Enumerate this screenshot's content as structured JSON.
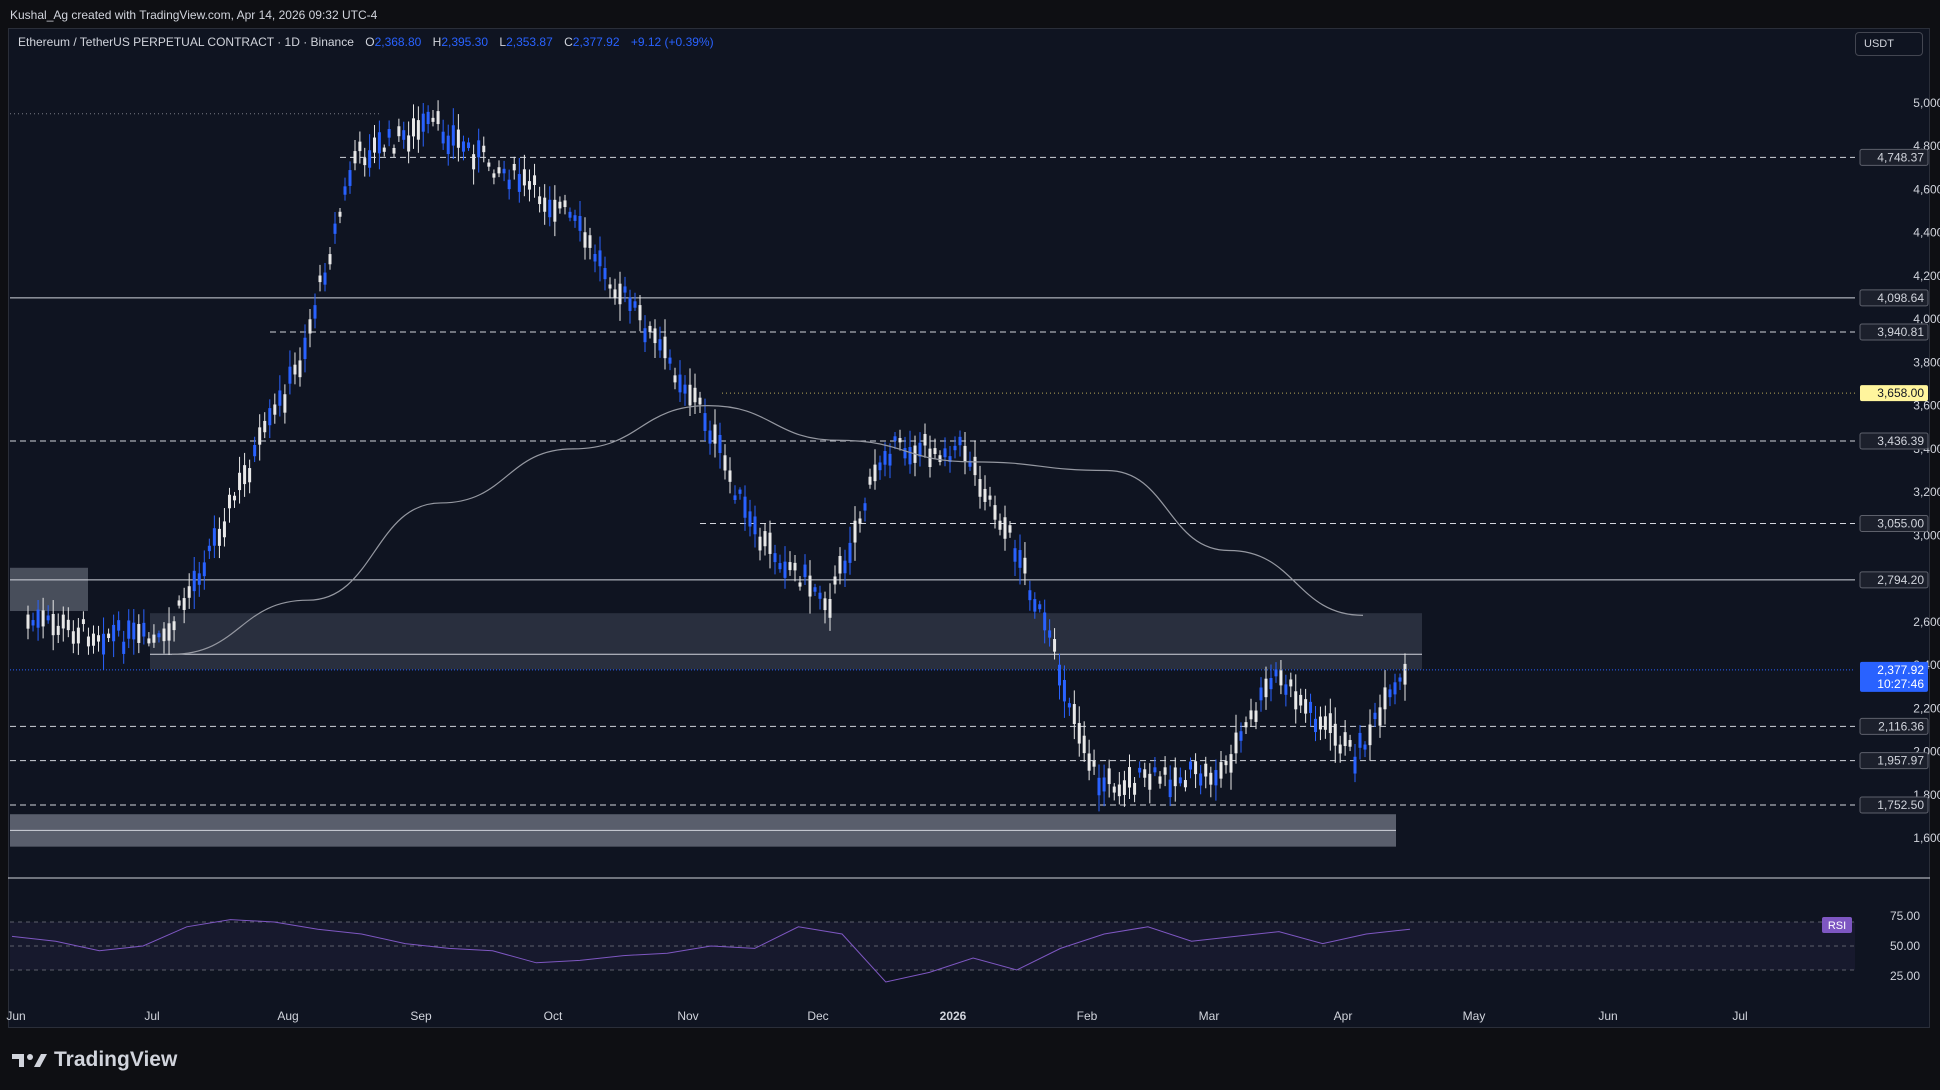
{
  "caption": "Kushal_Ag created with TradingView.com, Apr 14, 2026 09:32 UTC-4",
  "legend": {
    "symbol": "Ethereum / TetherUS PERPETUAL CONTRACT · 1D · Binance",
    "open_label": "O",
    "open": "2,368.80",
    "high_label": "H",
    "high": "2,395.30",
    "low_label": "L",
    "low": "2,353.87",
    "close_label": "C",
    "close": "2,377.92",
    "change": "+9.12 (+0.39%)"
  },
  "currency_button": "USDT",
  "brand": "TradingView",
  "colors": {
    "background": "#0f1421",
    "bull": "#2962ff",
    "bear": "#e8e8e8",
    "price_tag": "#2962ff",
    "highlight_tag": "#fff59d",
    "rsi_line": "#7e57c2",
    "ma_line": "#9598a1"
  },
  "price_axis_ticks": [
    "5,000.00",
    "4,800.00",
    "4,600.00",
    "4,400.00",
    "4,200.00",
    "4,000.00",
    "3,800.00",
    "3,600.00",
    "3,400.00",
    "3,200.00",
    "3,000.00",
    "2,600.00",
    "2,400.00",
    "2,200.00",
    "2,000.00",
    "1,800.00",
    "1,600.00"
  ],
  "time_axis_labels": [
    "Jun",
    "Jul",
    "Aug",
    "Sep",
    "Oct",
    "Nov",
    "Dec",
    "2026",
    "Feb",
    "Mar",
    "Apr",
    "May",
    "Jun",
    "Jul"
  ],
  "levels": [
    {
      "label": "4,748.37",
      "style": "dashed"
    },
    {
      "label": "4,098.64",
      "style": "solid"
    },
    {
      "label": "3,940.81",
      "style": "dashed"
    },
    {
      "label": "3,658.00",
      "style": "dotted",
      "highlight": true
    },
    {
      "label": "3,436.39",
      "style": "dashed"
    },
    {
      "label": "3,055.00",
      "style": "dashed"
    },
    {
      "label": "2,794.20",
      "style": "solid"
    },
    {
      "label": "2,116.36",
      "style": "dashed"
    },
    {
      "label": "1,957.97",
      "style": "dashed"
    },
    {
      "label": "1,752.50",
      "style": "dashed"
    }
  ],
  "current_price": {
    "price": "2,377.92",
    "countdown": "10:27:46"
  },
  "rsi": {
    "label": "RSI",
    "ticks": [
      "75.00",
      "50.00",
      "25.00"
    ]
  },
  "chart_data": {
    "type": "candlestick",
    "x_range": [
      "Jun",
      "Jul"
    ],
    "ylim": [
      1600,
      5000
    ],
    "key_points": [
      {
        "date": "Jun",
        "price": 2600
      },
      {
        "date": "Jul",
        "price": 2500
      },
      {
        "date": "Aug",
        "price": 3800
      },
      {
        "date": "Aug",
        "price": 4748
      },
      {
        "date": "Sep",
        "price": 4900
      },
      {
        "date": "Oct",
        "price": 4500
      },
      {
        "date": "Nov",
        "price": 3600
      },
      {
        "date": "Nov",
        "price": 3000
      },
      {
        "date": "Dec",
        "price": 2700
      },
      {
        "date": "Dec",
        "price": 3400
      },
      {
        "date": "2026",
        "price": 3400
      },
      {
        "date": "2026",
        "price": 2900
      },
      {
        "date": "Feb",
        "price": 1850
      },
      {
        "date": "Mar",
        "price": 1900
      },
      {
        "date": "Mar",
        "price": 2350
      },
      {
        "date": "Apr",
        "price": 1980
      },
      {
        "date": "Apr",
        "price": 2378
      }
    ],
    "moving_average": [
      {
        "date": "Jul",
        "price": 2450
      },
      {
        "date": "Aug",
        "price": 2700
      },
      {
        "date": "Sep",
        "price": 3150
      },
      {
        "date": "Oct",
        "price": 3400
      },
      {
        "date": "Nov",
        "price": 3600
      },
      {
        "date": "Dec",
        "price": 3440
      },
      {
        "date": "2026",
        "price": 3340
      },
      {
        "date": "Feb",
        "price": 3300
      },
      {
        "date": "Mar",
        "price": 2930
      },
      {
        "date": "Apr",
        "price": 2630
      }
    ],
    "zones": [
      {
        "from": 2380,
        "to": 2640
      },
      {
        "from": 1560,
        "to": 1710
      },
      {
        "from": 2650,
        "to": 2850
      }
    ],
    "rsi_values": [
      58,
      54,
      46,
      50,
      66,
      72,
      70,
      64,
      60,
      52,
      48,
      46,
      36,
      38,
      42,
      44,
      50,
      48,
      66,
      60,
      20,
      28,
      40,
      30,
      48,
      60,
      66,
      54,
      58,
      62,
      52,
      60,
      64
    ]
  }
}
